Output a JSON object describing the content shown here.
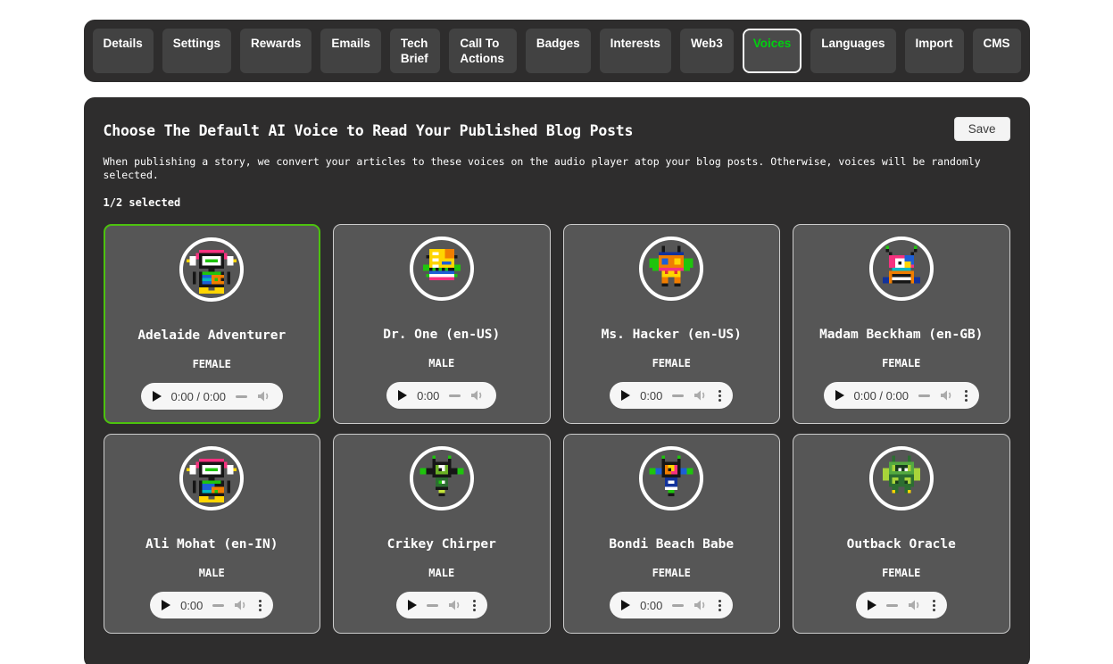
{
  "colors": {
    "active_tab_text": "#00cf0f",
    "selected_card_border": "#4cc20e",
    "panel_background": "#2e2d2d"
  },
  "tabs": [
    {
      "label": "Details"
    },
    {
      "label": "Settings"
    },
    {
      "label": "Rewards"
    },
    {
      "label": "Emails"
    },
    {
      "label": "Tech Brief"
    },
    {
      "label": "Call To Actions"
    },
    {
      "label": "Badges"
    },
    {
      "label": "Interests"
    },
    {
      "label": "Web3"
    },
    {
      "label": "Voices",
      "active": true
    },
    {
      "label": "Languages"
    },
    {
      "label": "Import"
    },
    {
      "label": "CMS"
    }
  ],
  "header": {
    "title": "Choose The Default AI Voice to Read Your Published Blog Posts",
    "save_label": "Save"
  },
  "description": "When publishing a story, we convert your articles to these voices on the audio player atop your blog posts. Otherwise, voices will be randomly selected.",
  "selection_status": "1/2 selected",
  "voices": [
    {
      "name": "Adelaide Adventurer",
      "gender": "FEMALE",
      "selected": true,
      "avatar": "headphones-robot",
      "player": {
        "time": "0:00 / 0:00",
        "menu": false
      }
    },
    {
      "name": "Dr. One (en-US)",
      "gender": "MALE",
      "selected": false,
      "avatar": "circuit-board-robot",
      "player": {
        "time": "0:00",
        "menu": false
      }
    },
    {
      "name": "Ms. Hacker (en-US)",
      "gender": "FEMALE",
      "selected": false,
      "avatar": "winged-robot",
      "player": {
        "time": "0:00",
        "menu": true
      }
    },
    {
      "name": "Madam Beckham (en-GB)",
      "gender": "FEMALE",
      "selected": false,
      "avatar": "typewriter-robot",
      "player": {
        "time": "0:00 / 0:00",
        "menu": true
      }
    },
    {
      "name": "Ali Mohat (en-IN)",
      "gender": "MALE",
      "selected": false,
      "avatar": "headphones-robot-2",
      "player": {
        "time": "0:00",
        "menu": true
      }
    },
    {
      "name": "Crikey Chirper",
      "gender": "MALE",
      "selected": false,
      "avatar": "green-drone-robot",
      "player": {
        "time": "",
        "menu": true
      }
    },
    {
      "name": "Bondi Beach Babe",
      "gender": "FEMALE",
      "selected": false,
      "avatar": "orange-drone-robot",
      "player": {
        "time": "0:00",
        "menu": true
      }
    },
    {
      "name": "Outback Oracle",
      "gender": "FEMALE",
      "selected": false,
      "avatar": "cassette-robot",
      "player": {
        "time": "",
        "menu": true
      }
    }
  ]
}
